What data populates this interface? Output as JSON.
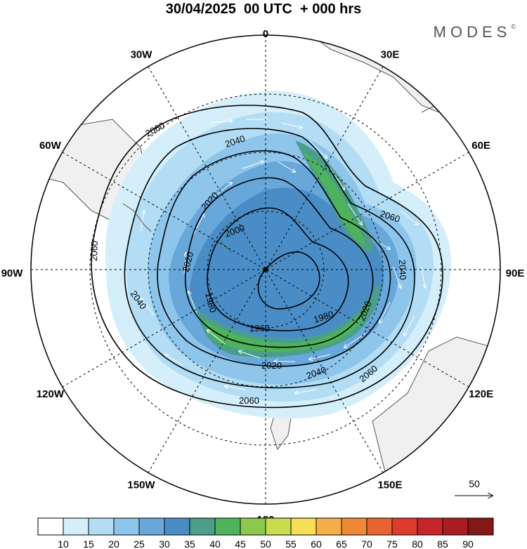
{
  "title": "30/04/2025  00 UTC  + 000 hrs",
  "brand": "MODES",
  "brand_mark": "©",
  "longitude_labels": [
    {
      "text": "0",
      "angle": 0
    },
    {
      "text": "30E",
      "angle": 30
    },
    {
      "text": "60E",
      "angle": 60
    },
    {
      "text": "90E",
      "angle": 90
    },
    {
      "text": "120E",
      "angle": 120
    },
    {
      "text": "150E",
      "angle": 150
    },
    {
      "text": "180",
      "angle": 180
    },
    {
      "text": "150W",
      "angle": 210
    },
    {
      "text": "120W",
      "angle": 240
    },
    {
      "text": "90W",
      "angle": 270
    },
    {
      "text": "60W",
      "angle": 300
    },
    {
      "text": "30W",
      "angle": 330
    }
  ],
  "contour_labels": [
    "2060",
    "2040",
    "2020",
    "2000",
    "1980",
    "1960"
  ],
  "vector_reference": {
    "label": "50",
    "units": "reference wind vector"
  },
  "colorbar": {
    "ticks": [
      "10",
      "15",
      "20",
      "25",
      "30",
      "35",
      "40",
      "45",
      "50",
      "55",
      "60",
      "65",
      "70",
      "75",
      "80",
      "85",
      "90"
    ],
    "colors": [
      "#ffffff",
      "#d4eefa",
      "#b2ddf4",
      "#8ec5eb",
      "#67a7d9",
      "#4a8dc6",
      "#4a9e8a",
      "#4fb35b",
      "#8cc84e",
      "#c9dc50",
      "#f8de56",
      "#f3b04a",
      "#ee8a36",
      "#e76330",
      "#dc3b2e",
      "#c7252b",
      "#a81c22",
      "#851716"
    ]
  },
  "colors": {
    "land": "#f0f0f0",
    "coast": "#555555",
    "contour": "#000000"
  }
}
